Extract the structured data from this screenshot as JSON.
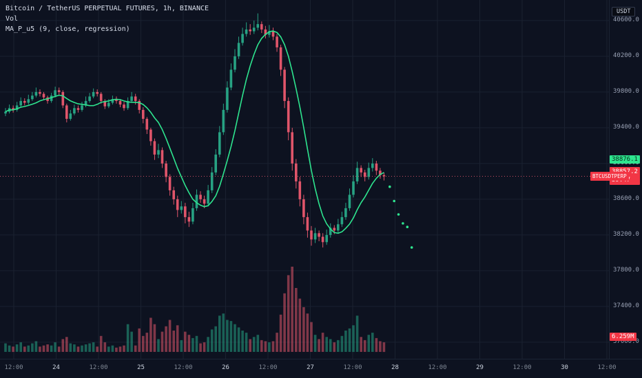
{
  "colors": {
    "bg": "#0d1220",
    "grid": "#1a2130",
    "up": "#27a283",
    "down": "#e0556a",
    "ma": "#2ee58f",
    "badge_red": "#f23645",
    "axis_text": "#98a0b3"
  },
  "legend": {
    "title": "Bitcoin / TetherUS PERPETUAL FUTURES, 1h, BINANCE",
    "vol": "Vol",
    "indicator": "MA_P_u5 (9, close, regression)"
  },
  "axis": {
    "currency": "USDT",
    "price_labels": [
      "40600.0",
      "40200.0",
      "39800.0",
      "39400.0",
      "39000.0",
      "38600.0",
      "38200.0",
      "37800.0",
      "37400.0",
      "37000.0"
    ],
    "time_labels": [
      "12:00",
      "24",
      "12:00",
      "25",
      "12:00",
      "26",
      "12:00",
      "27",
      "12:00",
      "28",
      "12:00",
      "29",
      "12:00",
      "30",
      "12:00"
    ]
  },
  "badges": {
    "indicator_value": "38876.1",
    "last_price": "38857.2",
    "countdown": "39:47",
    "symbol": "BTCUSDTPERP",
    "volume": "6.259M"
  },
  "chart_data": {
    "type": "candlestick",
    "title": "Bitcoin / TetherUS PERPETUAL FUTURES, 1h, BINANCE",
    "interval": "1h",
    "ma": {
      "length": 9,
      "source": "close",
      "name": "MA_P_u5 (9, close, regression)"
    },
    "ylim": [
      36820,
      40830
    ],
    "grid_step": 400,
    "last_price": 38857.2,
    "candles": [
      [
        39560,
        39620,
        39530,
        39580,
        0.8
      ],
      [
        39580,
        39660,
        39560,
        39620,
        0.6
      ],
      [
        39620,
        39650,
        39570,
        39600,
        0.5
      ],
      [
        39600,
        39690,
        39580,
        39650,
        0.7
      ],
      [
        39650,
        39740,
        39630,
        39700,
        0.9
      ],
      [
        39700,
        39730,
        39650,
        39680,
        0.5
      ],
      [
        39680,
        39770,
        39660,
        39720,
        0.6
      ],
      [
        39720,
        39800,
        39700,
        39760,
        0.8
      ],
      [
        39760,
        39850,
        39740,
        39800,
        1.0
      ],
      [
        39800,
        39830,
        39750,
        39780,
        0.5
      ],
      [
        39780,
        39800,
        39710,
        39740,
        0.6
      ],
      [
        39740,
        39760,
        39670,
        39700,
        0.7
      ],
      [
        39700,
        39790,
        39680,
        39760,
        0.6
      ],
      [
        39760,
        39860,
        39740,
        39820,
        0.9
      ],
      [
        39820,
        39850,
        39770,
        39800,
        0.5
      ],
      [
        39800,
        39820,
        39620,
        39650,
        1.2
      ],
      [
        39650,
        39670,
        39460,
        39500,
        1.4
      ],
      [
        39500,
        39600,
        39480,
        39560,
        0.8
      ],
      [
        39560,
        39660,
        39540,
        39620,
        0.7
      ],
      [
        39620,
        39650,
        39570,
        39600,
        0.5
      ],
      [
        39600,
        39690,
        39580,
        39650,
        0.6
      ],
      [
        39650,
        39750,
        39630,
        39700,
        0.7
      ],
      [
        39700,
        39790,
        39680,
        39750,
        0.8
      ],
      [
        39750,
        39840,
        39730,
        39800,
        0.9
      ],
      [
        39800,
        39830,
        39750,
        39780,
        0.5
      ],
      [
        39780,
        39800,
        39670,
        39700,
        1.5
      ],
      [
        39700,
        39720,
        39610,
        39640,
        0.9
      ],
      [
        39640,
        39720,
        39620,
        39680,
        0.5
      ],
      [
        39680,
        39760,
        39660,
        39720,
        0.6
      ],
      [
        39720,
        39750,
        39670,
        39700,
        0.4
      ],
      [
        39700,
        39720,
        39630,
        39660,
        0.5
      ],
      [
        39660,
        39690,
        39590,
        39620,
        0.6
      ],
      [
        39620,
        39740,
        39600,
        39700,
        2.6
      ],
      [
        39700,
        39800,
        39680,
        39750,
        1.9
      ],
      [
        39750,
        39780,
        39660,
        39700,
        0.6
      ],
      [
        39700,
        39720,
        39560,
        39600,
        2.2
      ],
      [
        39600,
        39630,
        39450,
        39500,
        1.5
      ],
      [
        39500,
        39520,
        39330,
        39380,
        1.8
      ],
      [
        39380,
        39400,
        39200,
        39250,
        3.2
      ],
      [
        39250,
        39280,
        39040,
        39100,
        2.6
      ],
      [
        39100,
        39220,
        39060,
        39150,
        1.2
      ],
      [
        39150,
        39180,
        38950,
        39000,
        1.9
      ],
      [
        39000,
        39030,
        38790,
        38850,
        2.4
      ],
      [
        38850,
        38880,
        38640,
        38700,
        3.0
      ],
      [
        38700,
        38740,
        38540,
        38600,
        2.0
      ],
      [
        38600,
        38640,
        38400,
        38480,
        2.5
      ],
      [
        38480,
        38580,
        38440,
        38520,
        1.1
      ],
      [
        38520,
        38560,
        38330,
        38400,
        1.9
      ],
      [
        38400,
        38460,
        38290,
        38350,
        1.6
      ],
      [
        38350,
        38560,
        38320,
        38500,
        1.3
      ],
      [
        38500,
        38710,
        38470,
        38650,
        1.5
      ],
      [
        38650,
        38690,
        38560,
        38600,
        0.8
      ],
      [
        38600,
        38640,
        38500,
        38550,
        0.9
      ],
      [
        38550,
        38760,
        38520,
        38700,
        1.4
      ],
      [
        38700,
        38960,
        38670,
        38900,
        2.1
      ],
      [
        38900,
        39160,
        38870,
        39100,
        2.4
      ],
      [
        39100,
        39420,
        39070,
        39350,
        3.4
      ],
      [
        39350,
        39670,
        39320,
        39600,
        3.6
      ],
      [
        39600,
        39920,
        39570,
        39850,
        3.0
      ],
      [
        39850,
        40120,
        39820,
        40050,
        2.9
      ],
      [
        40050,
        40280,
        40020,
        40200,
        2.6
      ],
      [
        40200,
        40420,
        40170,
        40350,
        2.3
      ],
      [
        40350,
        40520,
        40320,
        40450,
        2.0
      ],
      [
        40450,
        40580,
        40420,
        40500,
        1.8
      ],
      [
        40500,
        40560,
        40440,
        40480,
        1.2
      ],
      [
        40480,
        40600,
        40450,
        40520,
        1.4
      ],
      [
        40520,
        40680,
        40490,
        40560,
        1.6
      ],
      [
        40560,
        40590,
        40460,
        40500,
        1.1
      ],
      [
        40500,
        40540,
        40400,
        40440,
        1.0
      ],
      [
        40440,
        40550,
        40410,
        40480,
        0.9
      ],
      [
        40480,
        40520,
        40380,
        40420,
        1.0
      ],
      [
        40420,
        40450,
        40250,
        40300,
        1.8
      ],
      [
        40300,
        40330,
        39980,
        40050,
        3.5
      ],
      [
        40050,
        40080,
        39620,
        39700,
        5.5
      ],
      [
        39700,
        39740,
        39260,
        39350,
        7.2
      ],
      [
        39350,
        39400,
        38920,
        39000,
        8.0
      ],
      [
        39000,
        39050,
        38720,
        38800,
        6.0
      ],
      [
        38800,
        38850,
        38520,
        38600,
        5.0
      ],
      [
        38600,
        38650,
        38320,
        38400,
        4.2
      ],
      [
        38400,
        38450,
        38170,
        38250,
        3.6
      ],
      [
        38250,
        38300,
        38080,
        38150,
        2.8
      ],
      [
        38150,
        38280,
        38110,
        38220,
        1.6
      ],
      [
        38220,
        38250,
        38130,
        38180,
        1.2
      ],
      [
        38180,
        38220,
        38060,
        38120,
        1.8
      ],
      [
        38120,
        38260,
        38090,
        38200,
        1.4
      ],
      [
        38200,
        38330,
        38170,
        38280,
        1.2
      ],
      [
        38280,
        38310,
        38210,
        38250,
        0.9
      ],
      [
        38250,
        38380,
        38220,
        38320,
        1.1
      ],
      [
        38320,
        38460,
        38290,
        38400,
        1.5
      ],
      [
        38400,
        38560,
        38370,
        38500,
        2.0
      ],
      [
        38500,
        38720,
        38470,
        38650,
        2.2
      ],
      [
        38650,
        38870,
        38620,
        38800,
        2.5
      ],
      [
        38800,
        39020,
        38770,
        38950,
        3.4
      ],
      [
        38950,
        38980,
        38850,
        38900,
        1.4
      ],
      [
        38900,
        38930,
        38800,
        38850,
        1.1
      ],
      [
        38850,
        39010,
        38820,
        38950,
        1.6
      ],
      [
        38950,
        39060,
        38910,
        39000,
        1.8
      ],
      [
        39000,
        39030,
        38870,
        38920,
        1.3
      ],
      [
        38920,
        38950,
        38830,
        38870,
        1.0
      ],
      [
        38870,
        38900,
        38810,
        38857.2,
        0.9
      ]
    ],
    "forecast": [
      38740,
      38580,
      38430,
      38330,
      38290,
      38060
    ]
  }
}
